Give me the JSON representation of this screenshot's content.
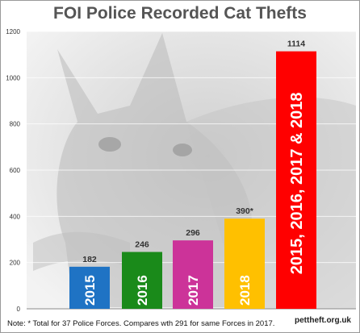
{
  "chart_data": {
    "type": "bar",
    "title": "FOI Police Recorded Cat Thefts",
    "categories": [
      "2015",
      "2016",
      "2017",
      "2018",
      "2015, 2016, 2017 & 2018"
    ],
    "values": [
      182,
      246,
      296,
      390,
      1114
    ],
    "value_labels": [
      "182",
      "246",
      "296",
      "390*",
      "1114"
    ],
    "colors": [
      "#1f73c4",
      "#1a8a1a",
      "#cc3399",
      "#ffc000",
      "#ff0000"
    ],
    "ylim": [
      0,
      1200
    ],
    "yticks": [
      0,
      200,
      400,
      600,
      800,
      1000,
      1200
    ],
    "grid": true,
    "legend": "none"
  },
  "note": "Note: * Total for 37 Police Forces. Compares wth 291 for same Forces in 2017.",
  "source": "pettheft.org.uk"
}
